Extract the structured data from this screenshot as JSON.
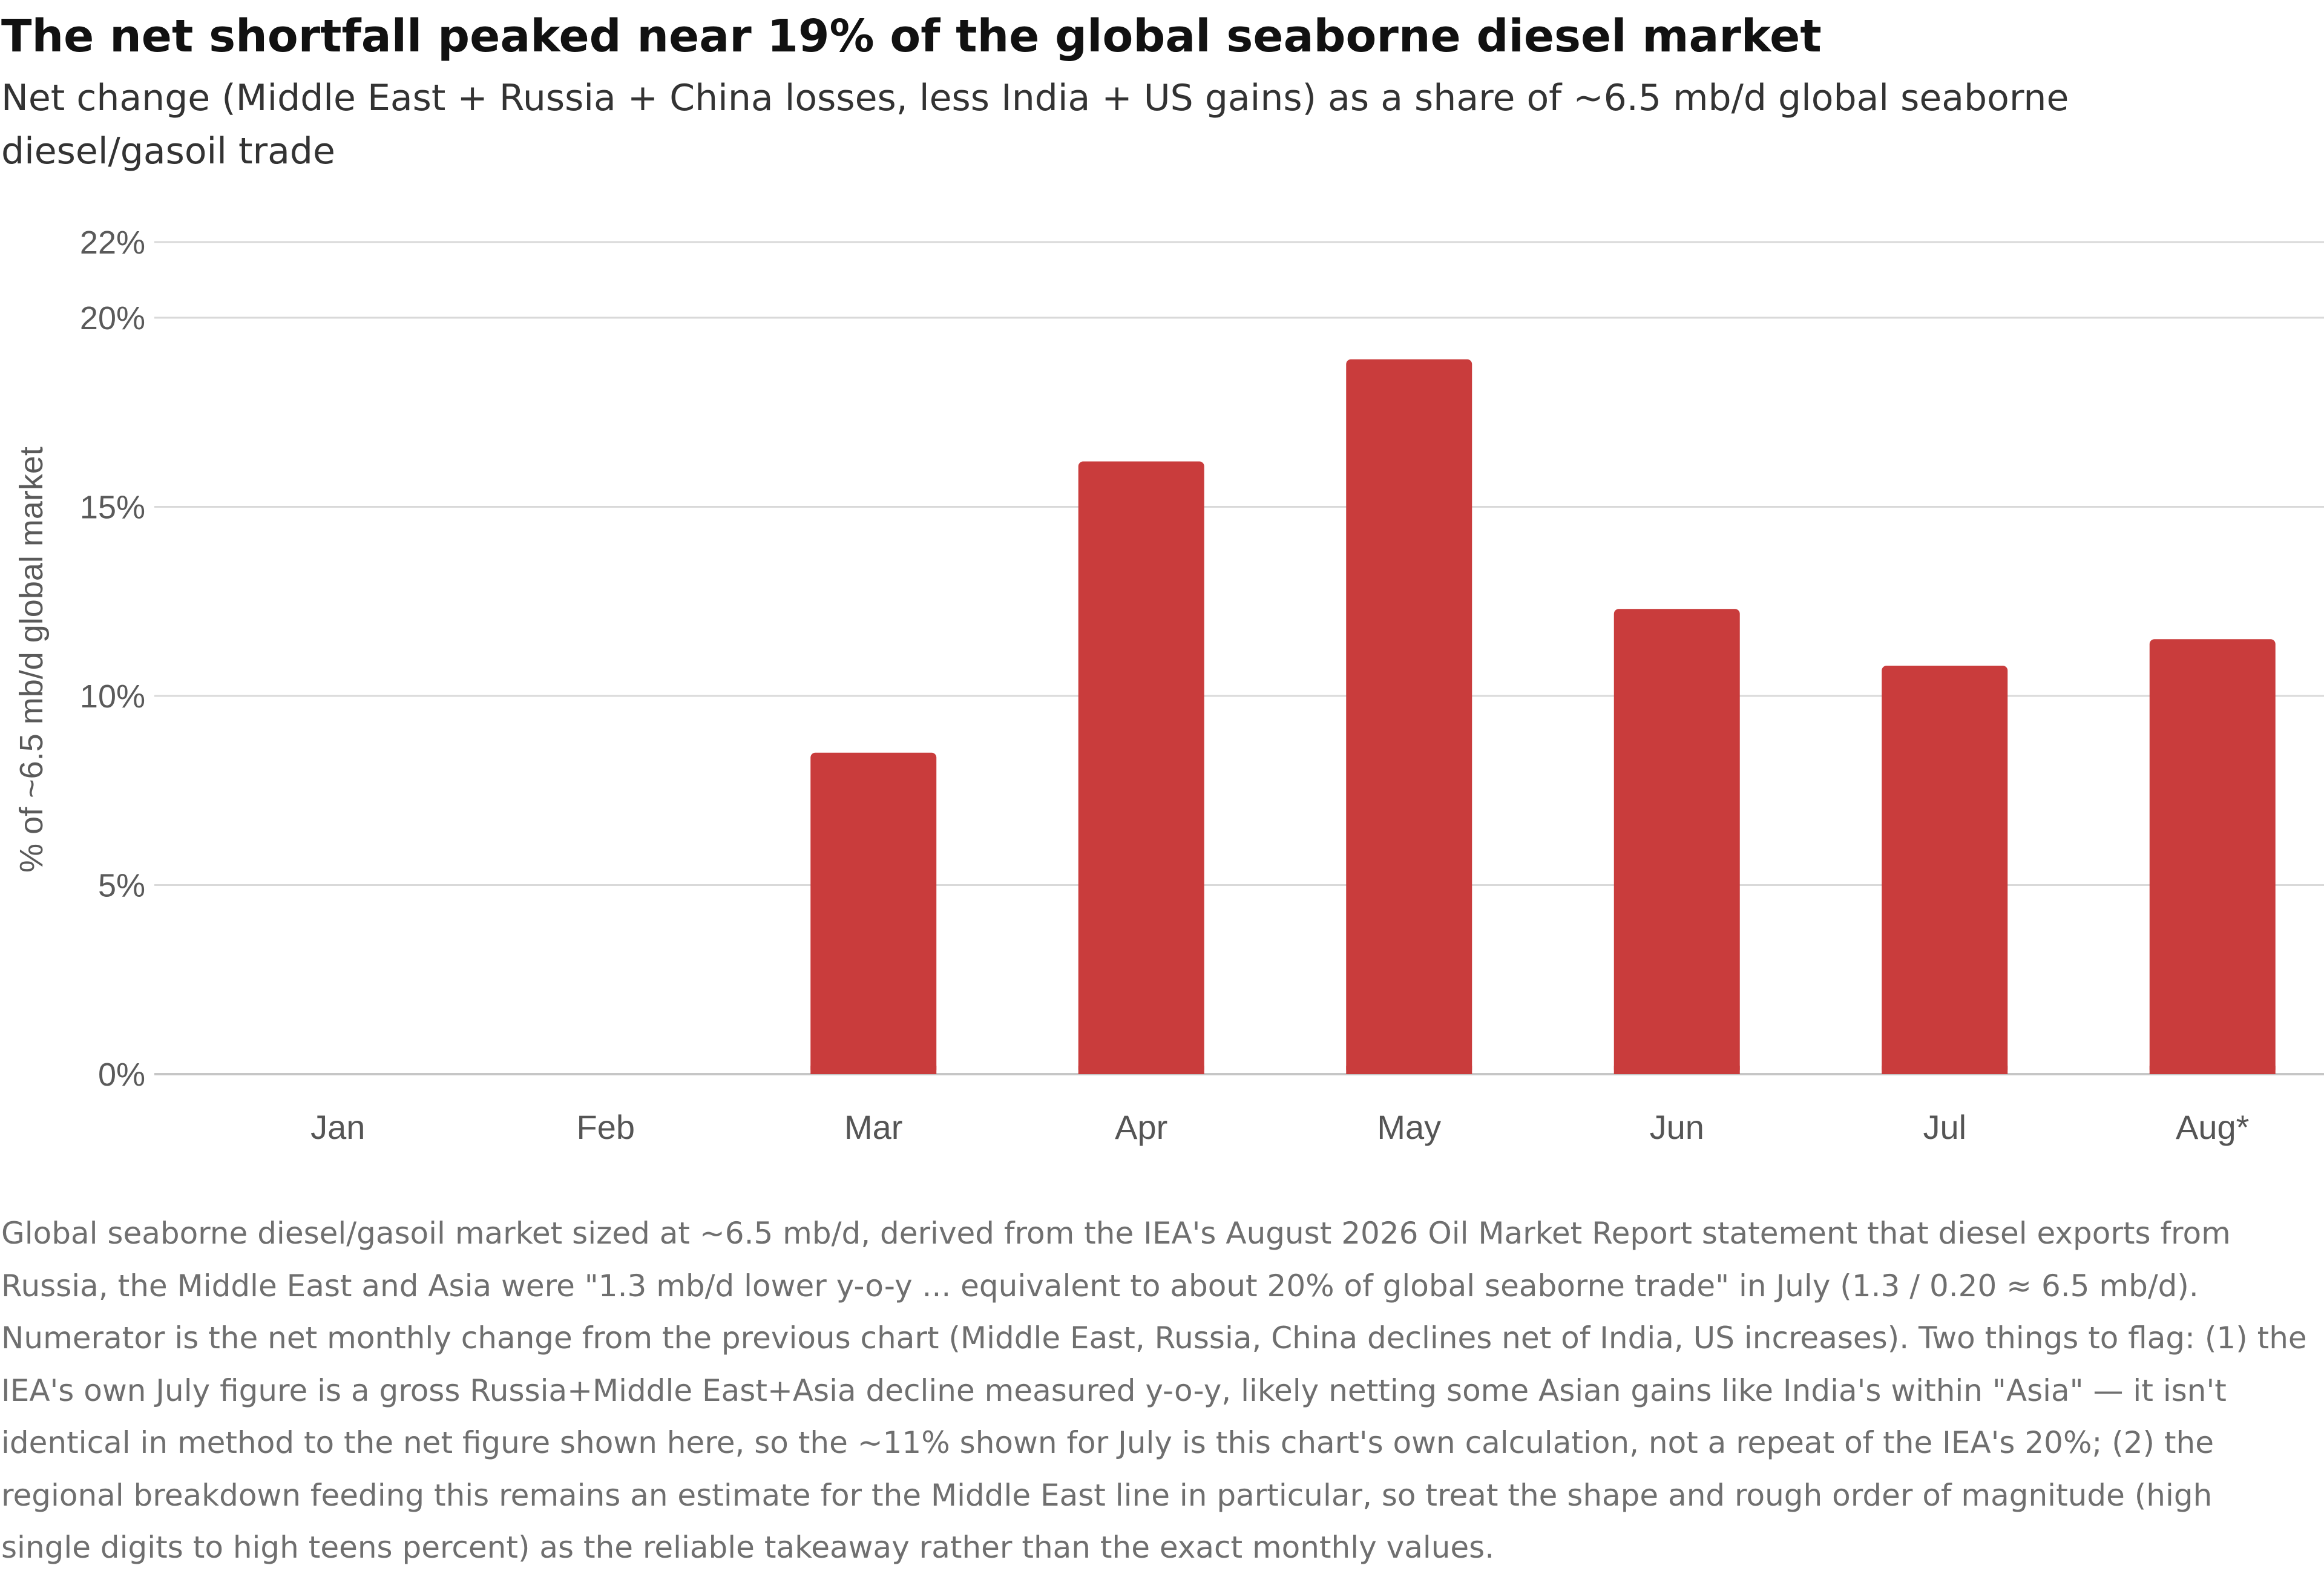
{
  "title": "The net shortfall peaked near 19% of the global seaborne diesel market",
  "subtitle": "Net change (Middle East + Russia + China losses, less India + US gains) as a share of ~6.5 mb/d global seaborne diesel/gasoil trade",
  "notes": "Global seaborne diesel/gasoil market sized at ~6.5 mb/d, derived from the IEA's August 2026 Oil Market Report statement that diesel exports from Russia, the Middle East and Asia were \"1.3 mb/d lower y-o-y ... equivalent to about 20% of global seaborne trade\" in July (1.3 / 0.20 ≈ 6.5 mb/d). Numerator is the net monthly change from the previous chart (Middle East, Russia, China declines net of India, US increases). Two things to flag: (1) the IEA's own July figure is a gross Russia+Middle East+Asia decline measured y-o-y, likely netting some Asian gains like India's within \"Asia\" — it isn't identical in method to the net figure shown here, so the ~11% shown for July is this chart's own calculation, not a repeat of the IEA's 20%; (2) the regional breakdown feeding this remains an estimate for the Middle East line in particular, so treat the shape and rough order of magnitude (high single digits to high teens percent) as the reliable takeaway rather than the exact monthly values.",
  "chart_data": {
    "type": "bar",
    "title": "The net shortfall peaked near 19% of the global seaborne diesel market",
    "subtitle": "Net change (Middle East + Russia + China losses, less India + US gains) as a share of ~6.5 mb/d global seaborne diesel/gasoil trade",
    "xlabel": "",
    "ylabel": "% of ~6.5 mb/d global market",
    "categories": [
      "Jan",
      "Feb",
      "Mar",
      "Apr",
      "May",
      "Jun",
      "Jul",
      "Aug*"
    ],
    "values": [
      0,
      0,
      8.5,
      16.2,
      18.9,
      12.3,
      10.8,
      11.5
    ],
    "ylim": [
      0,
      22
    ],
    "yticks": [
      0,
      5,
      10,
      15,
      20,
      22
    ],
    "ytick_labels": [
      "0%",
      "5%",
      "10%",
      "15%",
      "20%",
      "22%"
    ],
    "grid": true,
    "legend": "none",
    "bar_color": "#c93c3c",
    "grid_color": "#d9d9d9",
    "axis_color": "#c6c6c6"
  }
}
